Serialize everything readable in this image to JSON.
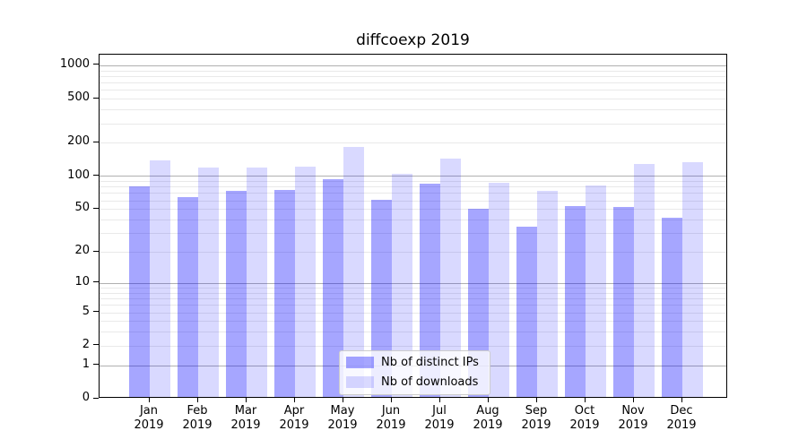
{
  "chart_data": {
    "type": "bar",
    "title": "diffcoexp 2019",
    "categories": [
      "Jan 2019",
      "Feb 2019",
      "Mar 2019",
      "Apr 2019",
      "May 2019",
      "Jun 2019",
      "Jul 2019",
      "Aug 2019",
      "Sep 2019",
      "Oct 2019",
      "Nov 2019",
      "Dec 2019"
    ],
    "series": [
      {
        "name": "Nb of distinct IPs",
        "color": "#a6a6ff",
        "css": "rgba(0,0,255,0.35)",
        "values": [
          77,
          62,
          70,
          72,
          90,
          59,
          82,
          48,
          33,
          51,
          50,
          40
        ]
      },
      {
        "name": "Nb of downloads",
        "color": "#d9d9ff",
        "css": "rgba(0,0,255,0.15)",
        "values": [
          134,
          116,
          115,
          118,
          178,
          101,
          139,
          83,
          70,
          79,
          124,
          128
        ]
      }
    ],
    "xlabel": "",
    "ylabel": "",
    "yscale": "log10(v+1)",
    "yticks": [
      1000,
      500,
      200,
      100,
      50,
      20,
      10,
      5,
      2,
      1,
      0
    ],
    "ylim": [
      0,
      1250
    ],
    "grid": {
      "enabled": true,
      "major_levels": [
        1,
        10,
        100,
        1000
      ],
      "major_color": "#b0b0b0",
      "minor_color": "#e9e9e9"
    },
    "legend": {
      "position": "lower center",
      "border_color": "#cccccc"
    }
  }
}
